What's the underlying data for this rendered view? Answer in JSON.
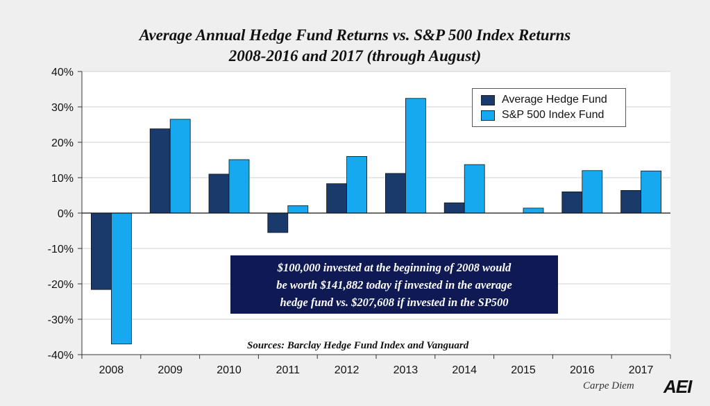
{
  "title_line1": "Average Annual Hedge Fund Returns vs. S&P 500 Index Returns",
  "title_line2": "2008-2016 and 2017 (through August)",
  "chart_data": {
    "type": "bar",
    "categories": [
      "2008",
      "2009",
      "2010",
      "2011",
      "2012",
      "2013",
      "2014",
      "2015",
      "2016",
      "2017"
    ],
    "series": [
      {
        "name": "Average Hedge Fund",
        "color": "#1a3a6b",
        "values": [
          -21.6,
          23.8,
          11.0,
          -5.5,
          8.3,
          11.2,
          2.9,
          0.0,
          6.0,
          6.4
        ]
      },
      {
        "name": "S&P 500 Index Fund",
        "color": "#17a9f0",
        "values": [
          -37.0,
          26.5,
          15.1,
          2.1,
          16.0,
          32.4,
          13.7,
          1.4,
          12.0,
          11.9
        ]
      }
    ],
    "ylim": [
      -40,
      40
    ],
    "yticks": [
      -40,
      -30,
      -20,
      -10,
      0,
      10,
      20,
      30,
      40
    ],
    "ytick_labels": [
      "-40%",
      "-30%",
      "-20%",
      "-10%",
      "0%",
      "10%",
      "20%",
      "30%",
      "40%"
    ],
    "grid": true,
    "legend_position": "top-right"
  },
  "annotation": [
    "$100,000 invested at the beginning of 2008 would",
    "be worth $141,882 today if invested in the average",
    "hedge fund vs. $207,608 if invested in the SP500"
  ],
  "sources": "Sources: Barclay Hedge Fund Index and Vanguard",
  "brand": "Carpe Diem",
  "logo": "AEI"
}
